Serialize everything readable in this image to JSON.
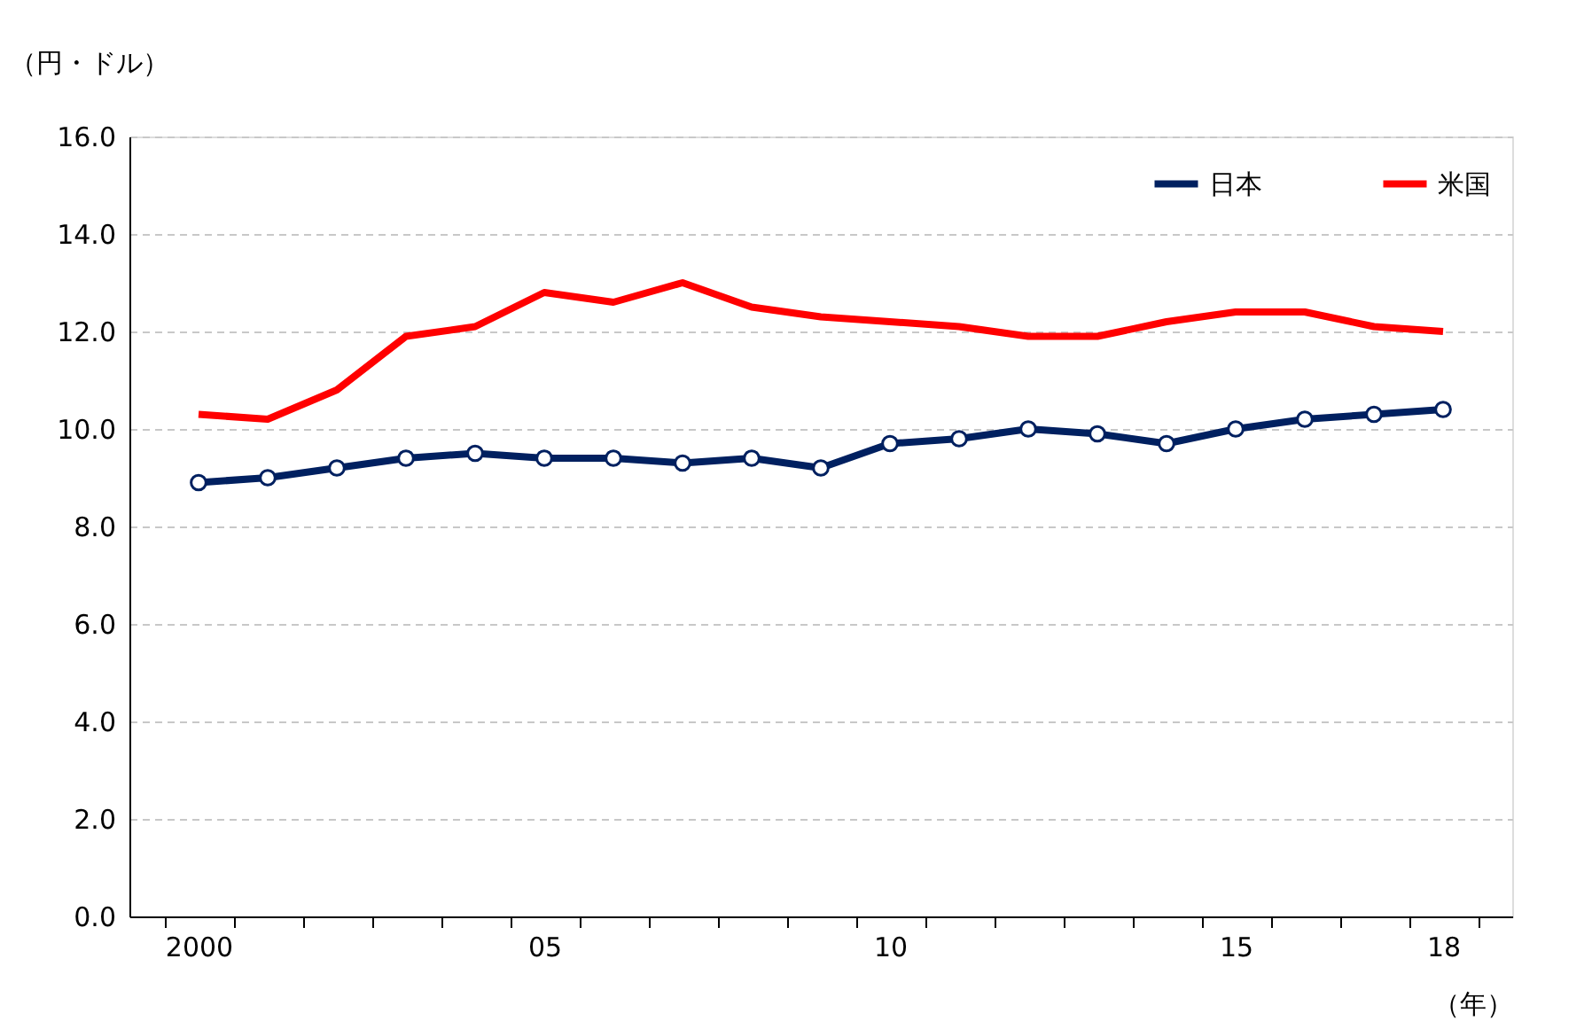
{
  "chart_data": {
    "type": "line",
    "ylabel": "（円・ドル）",
    "xlabel": "（年）",
    "categories": [
      "2000",
      null,
      null,
      null,
      null,
      "05",
      null,
      null,
      null,
      null,
      "10",
      null,
      null,
      null,
      null,
      "15",
      null,
      null,
      "18"
    ],
    "series": [
      {
        "name": "日本",
        "color": "#002060",
        "marker": "circle",
        "values": [
          8.9,
          9.0,
          9.2,
          9.4,
          9.5,
          9.4,
          9.4,
          9.3,
          9.4,
          9.2,
          9.7,
          9.8,
          10.0,
          9.9,
          9.7,
          10.0,
          10.2,
          10.3,
          10.4
        ]
      },
      {
        "name": "米国",
        "color": "#ff0000",
        "marker": "none",
        "values": [
          10.3,
          10.2,
          10.8,
          11.9,
          12.1,
          12.8,
          12.6,
          13.0,
          12.5,
          12.3,
          12.2,
          12.1,
          11.9,
          11.9,
          12.2,
          12.4,
          12.4,
          12.1,
          12.0
        ]
      }
    ],
    "ylim": [
      0,
      16
    ],
    "yticks": [
      {
        "value": 0,
        "label": "0.0"
      },
      {
        "value": 2,
        "label": "2.0"
      },
      {
        "value": 4,
        "label": "4.0"
      },
      {
        "value": 6,
        "label": "6.0"
      },
      {
        "value": 8,
        "label": "8.0"
      },
      {
        "value": 10,
        "label": "10.0"
      },
      {
        "value": 12,
        "label": "12.0"
      },
      {
        "value": 14,
        "label": "14.0"
      },
      {
        "value": 16,
        "label": "16.0"
      }
    ],
    "grid": "y",
    "legend": "top right",
    "line_style": "solid"
  }
}
